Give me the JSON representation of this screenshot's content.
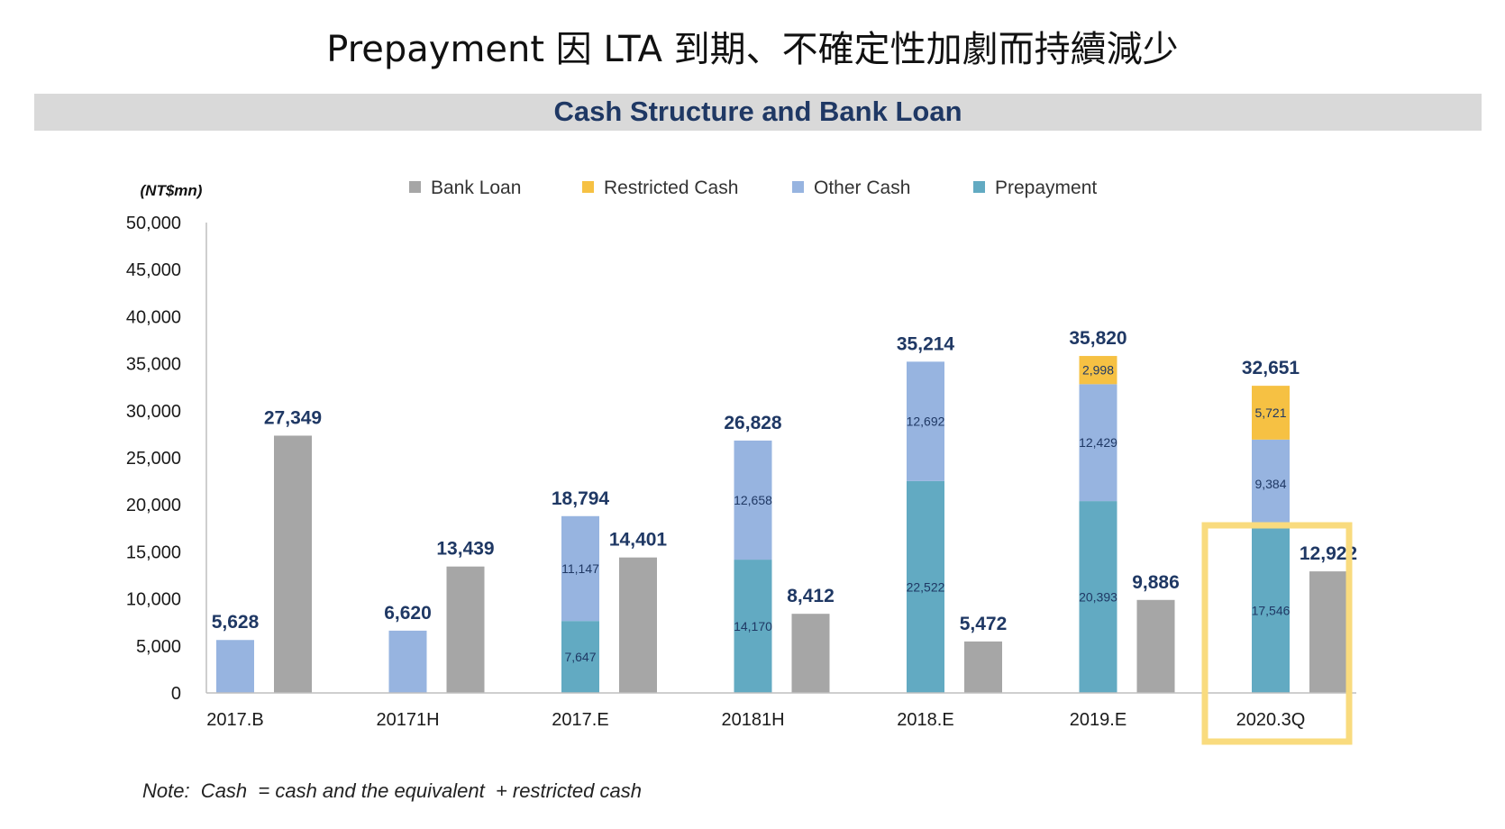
{
  "page_title": "Prepayment 因 LTA 到期、不確定性加劇而持續減少",
  "chart_title": "Cash Structure and Bank Loan",
  "unit_label": "(NT$mn)",
  "note": "Note:  Cash  = cash and the equivalent  + restricted cash",
  "colors": {
    "bank_loan": "#a6a6a6",
    "restricted_cash": "#f6c143",
    "other_cash": "#97b4e0",
    "prepayment": "#62aac2",
    "highlight": "#f9db7e",
    "total_label": "#1f3864",
    "segment_label": "#1f3864"
  },
  "legend": [
    {
      "name": "Bank Loan",
      "color_key": "bank_loan"
    },
    {
      "name": "Restricted Cash",
      "color_key": "restricted_cash"
    },
    {
      "name": "Other Cash",
      "color_key": "other_cash"
    },
    {
      "name": "Prepayment",
      "color_key": "prepayment"
    }
  ],
  "chart_data": {
    "type": "bar",
    "stacked": true,
    "title": "Cash Structure and Bank Loan",
    "ylabel": "(NT$mn)",
    "ylim": [
      0,
      50000
    ],
    "yticks": [
      0,
      5000,
      10000,
      15000,
      20000,
      25000,
      30000,
      35000,
      40000,
      45000,
      50000
    ],
    "ytick_labels": [
      "0",
      "5,000",
      "10,000",
      "15,000",
      "20,000",
      "25,000",
      "30,000",
      "35,000",
      "40,000",
      "45,000",
      "50,000"
    ],
    "categories": [
      "2017.B",
      "20171H",
      "2017.E",
      "20181H",
      "2018.E",
      "2019.E",
      "2020.3Q"
    ],
    "cash_stack": [
      {
        "prepayment": 0,
        "other_cash": 5628,
        "restricted_cash": 0,
        "total": 5628,
        "prepayment_label": "",
        "other_cash_label": "",
        "restricted_cash_label": "",
        "total_label": "5,628"
      },
      {
        "prepayment": 0,
        "other_cash": 6620,
        "restricted_cash": 0,
        "total": 6620,
        "prepayment_label": "",
        "other_cash_label": "",
        "restricted_cash_label": "",
        "total_label": "6,620"
      },
      {
        "prepayment": 7647,
        "other_cash": 11147,
        "restricted_cash": 0,
        "total": 18794,
        "prepayment_label": "7,647",
        "other_cash_label": "11,147",
        "restricted_cash_label": "",
        "total_label": "18,794"
      },
      {
        "prepayment": 14170,
        "other_cash": 12658,
        "restricted_cash": 0,
        "total": 26828,
        "prepayment_label": "14,170",
        "other_cash_label": "12,658",
        "restricted_cash_label": "",
        "total_label": "26,828"
      },
      {
        "prepayment": 22522,
        "other_cash": 12692,
        "restricted_cash": 0,
        "total": 35214,
        "prepayment_label": "22,522",
        "other_cash_label": "12,692",
        "restricted_cash_label": "",
        "total_label": "35,214"
      },
      {
        "prepayment": 20393,
        "other_cash": 12429,
        "restricted_cash": 2998,
        "total": 35820,
        "prepayment_label": "20,393",
        "other_cash_label": "12,429",
        "restricted_cash_label": "2,998",
        "total_label": "35,820"
      },
      {
        "prepayment": 17546,
        "other_cash": 9384,
        "restricted_cash": 5721,
        "total": 32651,
        "prepayment_label": "17,546",
        "other_cash_label": "9,384",
        "restricted_cash_label": "5,721",
        "total_label": "32,651"
      }
    ],
    "bank_loan": [
      {
        "value": 27349,
        "label": "27,349"
      },
      {
        "value": 13439,
        "label": "13,439"
      },
      {
        "value": 14401,
        "label": "14,401"
      },
      {
        "value": 8412,
        "label": "8,412"
      },
      {
        "value": 5472,
        "label": "5,472"
      },
      {
        "value": 9886,
        "label": "9,886"
      },
      {
        "value": 12922,
        "label": "12,922"
      }
    ],
    "highlighted_category": "2020.3Q",
    "legend_position": "top"
  }
}
